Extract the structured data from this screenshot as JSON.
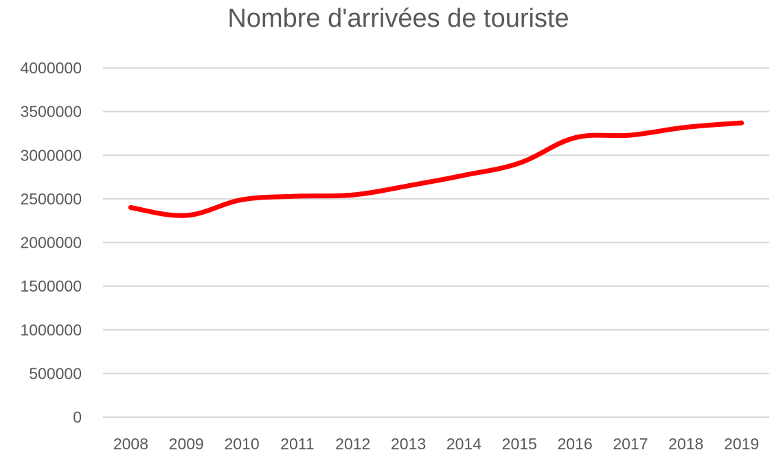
{
  "chart_data": {
    "type": "line",
    "title": "Nombre d'arrivées de touriste",
    "xlabel": "",
    "ylabel": "",
    "categories": [
      "2008",
      "2009",
      "2010",
      "2011",
      "2012",
      "2013",
      "2014",
      "2015",
      "2016",
      "2017",
      "2018",
      "2019"
    ],
    "series": [
      {
        "values": [
          2400000,
          2310000,
          2490000,
          2530000,
          2545000,
          2650000,
          2770000,
          2910000,
          3200000,
          3230000,
          3320000,
          3370000
        ],
        "color": "#ff0000"
      }
    ],
    "ylim": [
      0,
      4000000
    ],
    "yticks": [
      "0",
      "500000",
      "1000000",
      "1500000",
      "2000000",
      "2500000",
      "3000000",
      "3500000",
      "4000000"
    ],
    "grid": true,
    "legend": "none"
  }
}
